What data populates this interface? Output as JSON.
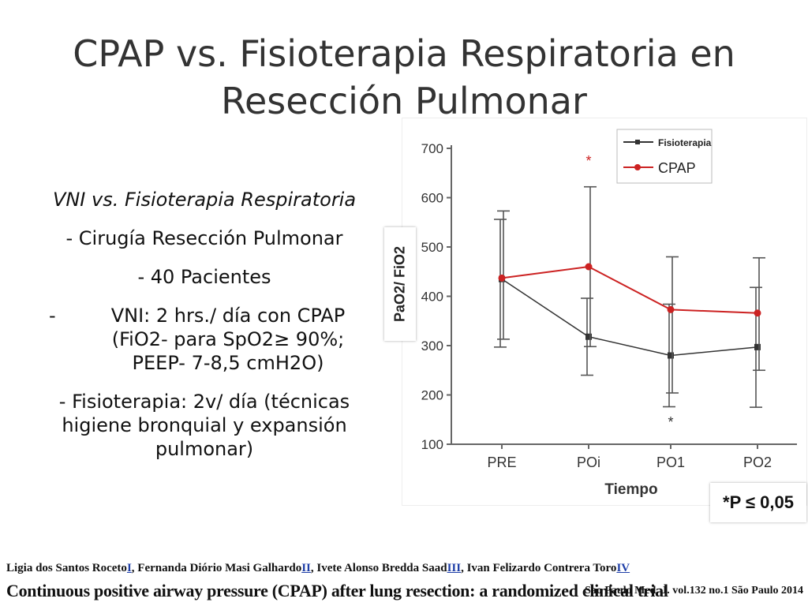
{
  "slide": {
    "title_line1": "CPAP vs. Fisioterapia Respiratoria en",
    "title_line2": "Resección Pulmonar"
  },
  "bullets": {
    "heading": "VNI vs. Fisioterapia Respiratoria",
    "item1": "- Cirugía Resección Pulmonar",
    "item2": "- 40 Pacientes",
    "item3_dash": "-",
    "item3_line1": "VNI: 2 hrs./ día con CPAP",
    "item3_line2": "(FiO2- para SpO2≥ 90%;",
    "item3_line3": "PEEP- 7-8,5 cmH2O)",
    "item4_line1": "- Fisioterapia: 2v/ día (técnicas",
    "item4_line2": "higiene bronquial y expansión",
    "item4_line3": "pulmonar)"
  },
  "pnote": "*P ≤ 0,05",
  "footer": {
    "authors_parts": [
      {
        "text": "Ligia dos Santos Roceto",
        "link": false
      },
      {
        "text": "I",
        "link": true
      },
      {
        "text": ", Fernanda Diório Masi Galhardo",
        "link": false
      },
      {
        "text": "II",
        "link": true
      },
      {
        "text": ", Ivete Alonso Bredda Saad",
        "link": false
      },
      {
        "text": "III",
        "link": true
      },
      {
        "text": ", Ivan Felizardo Contrera Toro",
        "link": false
      },
      {
        "text": "IV",
        "link": true
      }
    ],
    "paper_title": "Continuous positive airway pressure (CPAP) after lung resection: a randomized clinical trial",
    "journal": "Sao Paulo Med. J. vol.132 no.1 São Paulo  2014"
  },
  "chart_data": {
    "type": "line",
    "xlabel": "Tiempo",
    "ylabel": "PaO2/ FiO2",
    "categories": [
      "PRE",
      "POi",
      "PO1",
      "PO2"
    ],
    "ylim": [
      100,
      700
    ],
    "yticks": [
      100,
      200,
      300,
      400,
      500,
      600,
      700
    ],
    "grid": false,
    "legend_position": "top-right",
    "series": [
      {
        "name": "Fisioterapia",
        "color": "#333333",
        "marker": "square",
        "values": [
          435,
          318,
          280,
          297
        ],
        "err_low": [
          297,
          240,
          176,
          175
        ],
        "err_high": [
          556,
          396,
          384,
          418
        ]
      },
      {
        "name": "CPAP",
        "color": "#cc2222",
        "marker": "circle",
        "values": [
          437,
          460,
          373,
          366
        ],
        "err_low": [
          313,
          298,
          204,
          250
        ],
        "err_high": [
          573,
          622,
          480,
          478
        ]
      }
    ],
    "annotations": [
      {
        "text": "*",
        "category": "POi",
        "y": 665,
        "color": "#cc2222"
      },
      {
        "text": "*",
        "category": "PO1",
        "y": 135,
        "color": "#333333"
      }
    ]
  }
}
